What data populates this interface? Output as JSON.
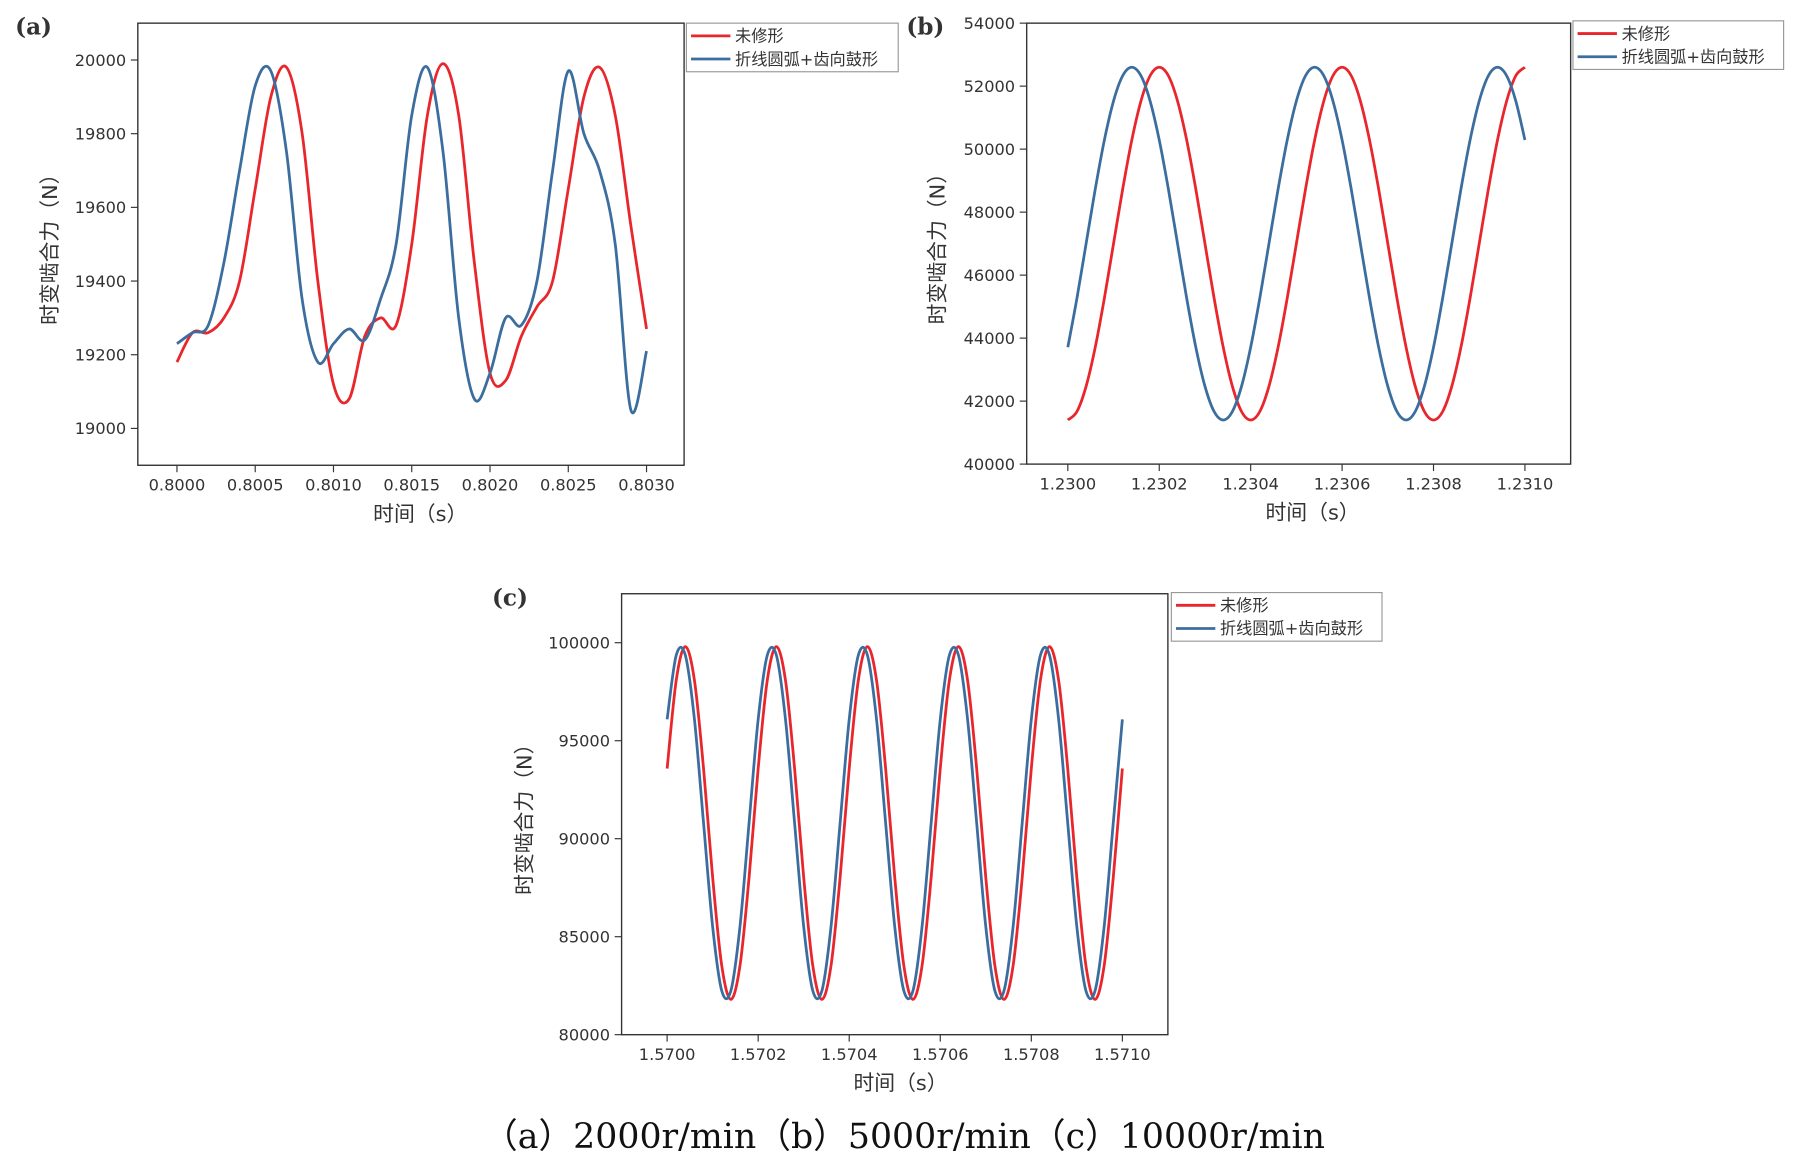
{
  "caption": "（a）2000r/min（b）5000r/min（c）10000r/min",
  "chart_data": [
    {
      "type": "line",
      "panel_label": "(a)",
      "xlabel": "时间（s）",
      "ylabel": "时变啮合力（N）",
      "xlim": [
        0.79975,
        0.80324
      ],
      "ylim": [
        18900,
        20100
      ],
      "xticks": [
        {
          "value": 0.8,
          "label": "0.8000"
        },
        {
          "value": 0.8005,
          "label": "0.8005"
        },
        {
          "value": 0.801,
          "label": "0.8010"
        },
        {
          "value": 0.8015,
          "label": "0.8015"
        },
        {
          "value": 0.802,
          "label": "0.8020"
        },
        {
          "value": 0.8025,
          "label": "0.8025"
        },
        {
          "value": 0.803,
          "label": "0.8030"
        }
      ],
      "yticks": [
        19000,
        19200,
        19400,
        19600,
        19800,
        20000
      ],
      "x": [
        0.8,
        0.8001,
        0.8002,
        0.8003,
        0.8004,
        0.8005,
        0.8006,
        0.8007,
        0.8008,
        0.8009,
        0.801,
        0.8011,
        0.8012,
        0.8013,
        0.8014,
        0.8015,
        0.8016,
        0.8017,
        0.8018,
        0.8019,
        0.802,
        0.8021,
        0.8022,
        0.8023,
        0.8024,
        0.8025,
        0.8026,
        0.8027,
        0.8028,
        0.8029,
        0.803
      ],
      "series": [
        {
          "name": "未修形",
          "color": "#e8262b",
          "values": [
            19180,
            19260,
            19260,
            19300,
            19400,
            19650,
            19900,
            19980,
            19800,
            19400,
            19120,
            19080,
            19250,
            19300,
            19280,
            19500,
            19850,
            19990,
            19850,
            19450,
            19150,
            19130,
            19250,
            19330,
            19400,
            19650,
            19900,
            19980,
            19850,
            19550,
            19270
          ]
        },
        {
          "name": "折线圆弧+齿向鼓形",
          "color": "#3b6e9e",
          "values": [
            19230,
            19260,
            19280,
            19450,
            19700,
            19930,
            19970,
            19750,
            19350,
            19180,
            19230,
            19270,
            19240,
            19350,
            19500,
            19850,
            19980,
            19750,
            19300,
            19080,
            19150,
            19300,
            19280,
            19400,
            19700,
            19970,
            19800,
            19700,
            19500,
            19050,
            19210
          ]
        }
      ]
    },
    {
      "type": "line",
      "panel_label": "(b)",
      "xlabel": "时间（s）",
      "ylabel": "时变啮合力（N）",
      "xlim": [
        1.22991,
        1.2311
      ],
      "ylim": [
        40000,
        54000
      ],
      "xticks": [
        {
          "value": 1.23,
          "label": "1.2300"
        },
        {
          "value": 1.2302,
          "label": "1.2302"
        },
        {
          "value": 1.2304,
          "label": "1.2304"
        },
        {
          "value": 1.2306,
          "label": "1.2306"
        },
        {
          "value": 1.2308,
          "label": "1.2308"
        },
        {
          "value": 1.231,
          "label": "1.2310"
        }
      ],
      "yticks": [
        40000,
        42000,
        44000,
        46000,
        48000,
        50000,
        52000,
        54000
      ],
      "x": [
        1.23,
        1.23002,
        1.23004,
        1.23006,
        1.23008,
        1.2301,
        1.23012,
        1.23014,
        1.23016,
        1.23018,
        1.2302,
        1.23022,
        1.23024,
        1.23026,
        1.23028,
        1.2303,
        1.23032,
        1.23034,
        1.23036,
        1.23038,
        1.2304,
        1.23042,
        1.23044,
        1.23046,
        1.23048,
        1.2305,
        1.23052,
        1.23054,
        1.23056,
        1.23058,
        1.2306,
        1.23062,
        1.23064,
        1.23066,
        1.23068,
        1.2307,
        1.23072,
        1.23074,
        1.23076,
        1.23078,
        1.2308,
        1.23082,
        1.23084,
        1.23086,
        1.23088,
        1.2309,
        1.23092,
        1.23094,
        1.23096,
        1.23098,
        1.231
      ],
      "series": [
        {
          "name": "未修形",
          "color": "#e8262b",
          "values": [
            41400,
            41670,
            42470,
            43710,
            45270,
            47000,
            48730,
            50290,
            51530,
            52330,
            52600,
            52330,
            51530,
            50290,
            48730,
            47000,
            45270,
            43710,
            42470,
            41670,
            41400,
            41670,
            42470,
            43710,
            45270,
            47000,
            48730,
            50290,
            51530,
            52330,
            52600,
            52330,
            51530,
            50290,
            48730,
            47000,
            45270,
            43710,
            42470,
            41670,
            41400,
            41670,
            42470,
            43710,
            45270,
            47000,
            48730,
            50290,
            51530,
            52330,
            52600
          ]
        },
        {
          "name": "折线圆弧+齿向鼓形",
          "color": "#3b6e9e",
          "values": [
            43710,
            45270,
            47000,
            48730,
            50290,
            51530,
            52330,
            52600,
            52330,
            51530,
            50290,
            48730,
            47000,
            45270,
            43710,
            42470,
            41670,
            41400,
            41670,
            42470,
            43710,
            45270,
            47000,
            48730,
            50290,
            51530,
            52330,
            52600,
            52330,
            51530,
            50290,
            48730,
            47000,
            45270,
            43710,
            42470,
            41670,
            41400,
            41670,
            42470,
            43710,
            45270,
            47000,
            48730,
            50290,
            51530,
            52330,
            52600,
            52330,
            51530,
            50290
          ]
        }
      ]
    },
    {
      "type": "line",
      "panel_label": "(c)",
      "xlabel": "时间（s）",
      "ylabel": "时变啮合力（N）",
      "xlim": [
        1.5699,
        1.5711
      ],
      "ylim": [
        80000,
        102500
      ],
      "xticks": [
        {
          "value": 1.57,
          "label": "1.5700"
        },
        {
          "value": 1.5702,
          "label": "1.5702"
        },
        {
          "value": 1.5704,
          "label": "1.5704"
        },
        {
          "value": 1.5706,
          "label": "1.5706"
        },
        {
          "value": 1.5708,
          "label": "1.5708"
        },
        {
          "value": 1.571,
          "label": "1.5710"
        }
      ],
      "yticks": [
        80000,
        85000,
        90000,
        95000,
        100000
      ],
      "x": [
        1.57,
        1.57002,
        1.57004,
        1.57006,
        1.57008,
        1.5701,
        1.57012,
        1.57014,
        1.57016,
        1.57018,
        1.5702,
        1.57022,
        1.57024,
        1.57026,
        1.57028,
        1.5703,
        1.57032,
        1.57034,
        1.57036,
        1.57038,
        1.5704,
        1.57042,
        1.57044,
        1.57046,
        1.57048,
        1.5705,
        1.57052,
        1.57054,
        1.57056,
        1.57058,
        1.5706,
        1.57062,
        1.57064,
        1.57066,
        1.57068,
        1.5707,
        1.57072,
        1.57074,
        1.57076,
        1.57078,
        1.5708,
        1.57082,
        1.57084,
        1.57086,
        1.57088,
        1.5709,
        1.57092,
        1.57094,
        1.57096,
        1.57098,
        1.571
      ],
      "series": [
        {
          "name": "未修形",
          "color": "#e8262b",
          "values": [
            93580,
            98080,
            99800,
            98080,
            93580,
            88020,
            83520,
            81800,
            83520,
            88020,
            93580,
            98080,
            99800,
            98080,
            93580,
            88020,
            83520,
            81800,
            83520,
            88020,
            93580,
            98080,
            99800,
            98080,
            93580,
            88020,
            83520,
            81800,
            83520,
            88020,
            93580,
            98080,
            99800,
            98080,
            93580,
            88020,
            83520,
            81800,
            83520,
            88020,
            93580,
            98080,
            99800,
            98080,
            93580,
            88020,
            83520,
            81800,
            83520,
            88020,
            93580
          ]
        },
        {
          "name": "折线圆弧+齿向鼓形",
          "color": "#3b6e9e",
          "values": [
            96090,
            99360,
            99360,
            96090,
            90800,
            85510,
            82240,
            82240,
            85510,
            90800,
            96090,
            99360,
            99360,
            96090,
            90800,
            85510,
            82240,
            82240,
            85510,
            90800,
            96090,
            99360,
            99360,
            96090,
            90800,
            85510,
            82240,
            82240,
            85510,
            90800,
            96090,
            99360,
            99360,
            96090,
            90800,
            85510,
            82240,
            82240,
            85510,
            90800,
            96090,
            99360,
            99360,
            96090,
            90800,
            85510,
            82240,
            82240,
            85510,
            90800,
            96090
          ]
        }
      ]
    }
  ]
}
